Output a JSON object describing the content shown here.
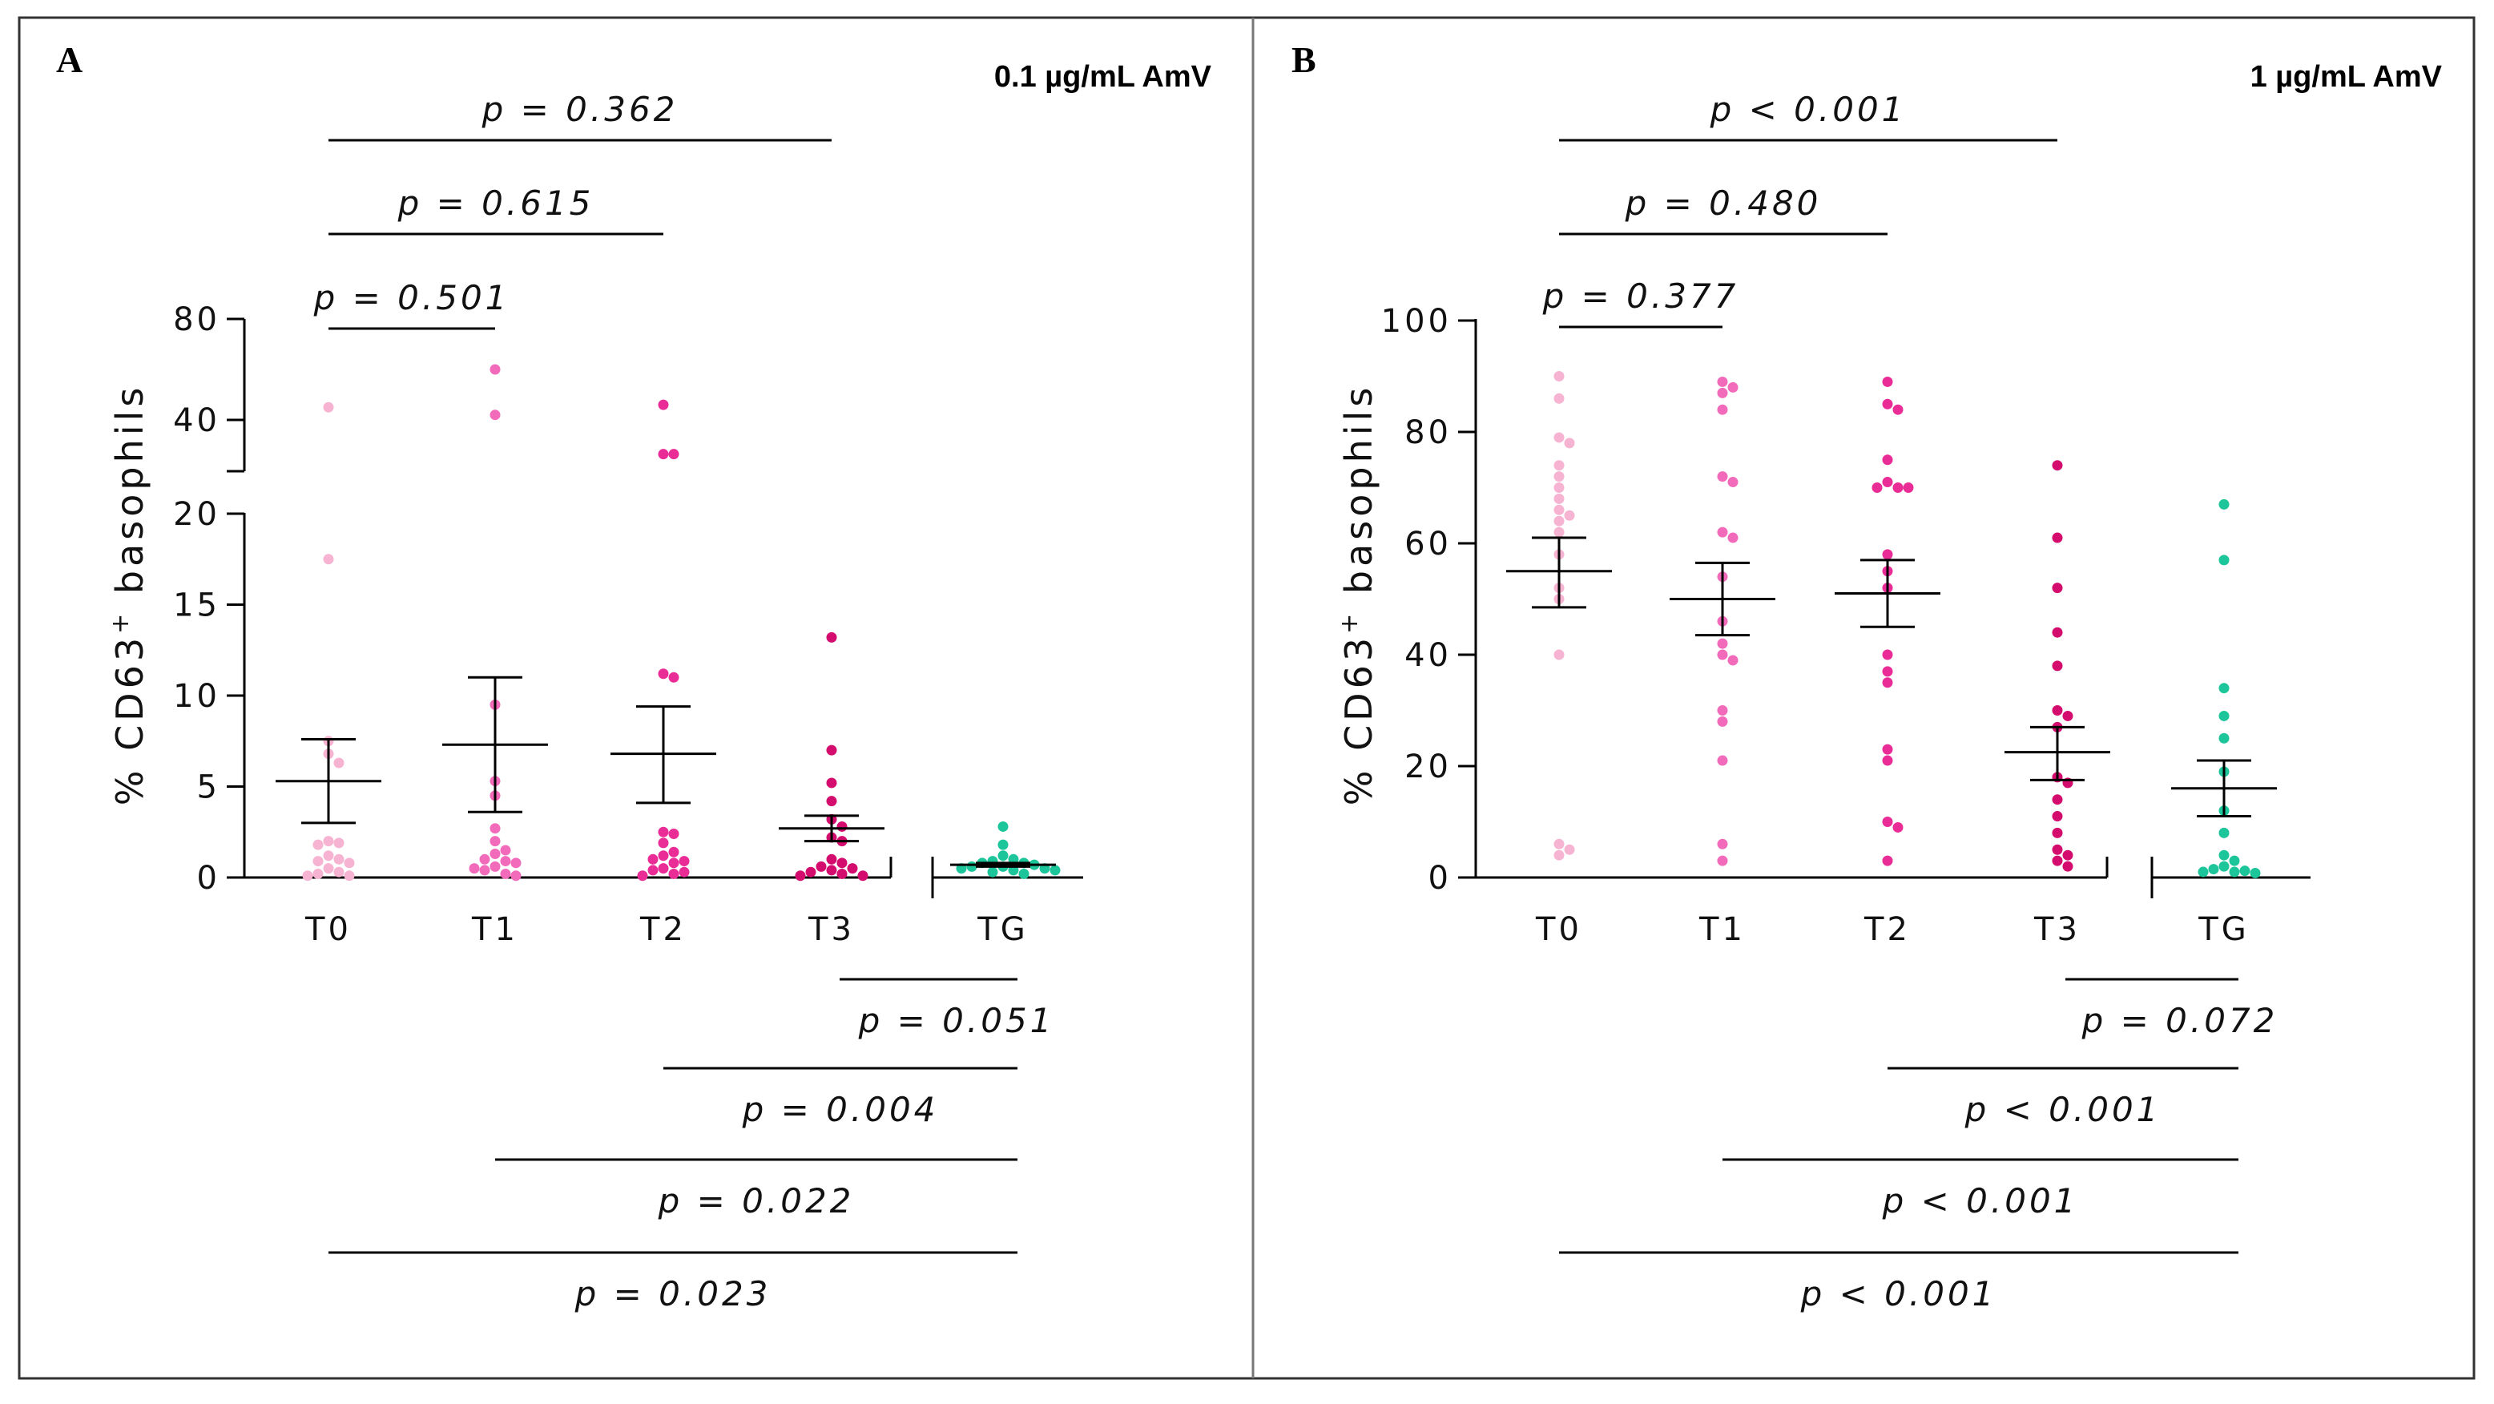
{
  "colors": {
    "T0": "#f7b3d2",
    "T1": "#f26bbb",
    "T2": "#ea2c97",
    "T3": "#d30c6e",
    "TG": "#1cc59a",
    "line": "#000000"
  },
  "chart_data": [
    {
      "type": "scatter",
      "panel_letter": "A",
      "concentration": "0.1 µg/mL AmV",
      "ylabel_prefix": "% CD63",
      "ylabel_sup": "+",
      "ylabel_suffix": " basophils",
      "categories": [
        "T0",
        "T1",
        "T2",
        "T3",
        "TG"
      ],
      "y_axis": {
        "broken": true,
        "lower_range": [
          0,
          20
        ],
        "lower_ticks": [
          "0",
          "5",
          "10",
          "15",
          "20"
        ],
        "upper_range": [
          25,
          80
        ],
        "upper_ticks": [
          "40",
          "80"
        ]
      },
      "points": {
        "T0": [
          45,
          17.5,
          7.5,
          6.8,
          6.3,
          2,
          1.9,
          1.8,
          1.2,
          1.0,
          0.9,
          0.8,
          0.5,
          0.3,
          0.2,
          0.1,
          0.1
        ],
        "T1": [
          60,
          42,
          9.5,
          5.3,
          4.5,
          2.7,
          2.0,
          1.5,
          1.3,
          1.0,
          0.9,
          0.8,
          0.6,
          0.5,
          0.4,
          0.2,
          0.1
        ],
        "T2": [
          46,
          30,
          30,
          11.2,
          11.0,
          2.5,
          2.4,
          1.9,
          1.4,
          1.2,
          1.0,
          0.9,
          0.8,
          0.5,
          0.4,
          0.3,
          0.2,
          0.1
        ],
        "T3": [
          13.2,
          7.0,
          5.2,
          4.2,
          3.2,
          2.8,
          2.2,
          2.0,
          1.0,
          0.8,
          0.6,
          0.5,
          0.4,
          0.3,
          0.2,
          0.1,
          0.1
        ],
        "TG": [
          2.8,
          1.8,
          1.2,
          1.0,
          0.9,
          0.8,
          0.8,
          0.7,
          0.6,
          0.6,
          0.5,
          0.5,
          0.4,
          0.4,
          0.3,
          0.2
        ]
      },
      "mean_sem": {
        "T0": {
          "mean": 5.3,
          "low": 3.0,
          "high": 7.6
        },
        "T1": {
          "mean": 7.3,
          "low": 3.6,
          "high": 11.0
        },
        "T2": {
          "mean": 6.8,
          "low": 4.1,
          "high": 9.4
        },
        "T3": {
          "mean": 2.7,
          "low": 2.0,
          "high": 3.4
        },
        "TG": {
          "mean": 0.7,
          "low": 0.6,
          "high": 0.8
        }
      },
      "comparisons_top": [
        {
          "from": "T0",
          "to": "T3",
          "label": "p = 0.362"
        },
        {
          "from": "T0",
          "to": "T2",
          "label": "p = 0.615"
        },
        {
          "from": "T0",
          "to": "T1",
          "label": "p = 0.501"
        }
      ],
      "comparisons_bottom": [
        {
          "from": "T3",
          "to": "TG",
          "label": "p = 0.051"
        },
        {
          "from": "T2",
          "to": "TG",
          "label": "p = 0.004"
        },
        {
          "from": "T1",
          "to": "TG",
          "label": "p = 0.022"
        },
        {
          "from": "T0",
          "to": "TG",
          "label": "p = 0.023"
        }
      ]
    },
    {
      "type": "scatter",
      "panel_letter": "B",
      "concentration": "1 µg/mL AmV",
      "ylabel_prefix": "% CD63",
      "ylabel_sup": "+",
      "ylabel_suffix": " basophils",
      "categories": [
        "T0",
        "T1",
        "T2",
        "T3",
        "TG"
      ],
      "y_axis": {
        "broken": false,
        "range": [
          0,
          100
        ],
        "ticks": [
          "0",
          "20",
          "40",
          "60",
          "80",
          "100"
        ]
      },
      "points": {
        "T0": [
          90,
          86,
          79,
          78,
          74,
          72,
          70,
          68,
          66,
          65,
          64,
          62,
          58,
          52,
          50,
          40,
          6,
          5,
          4
        ],
        "T1": [
          89,
          88,
          87,
          84,
          72,
          71,
          62,
          61,
          54,
          46,
          42,
          40,
          39,
          30,
          28,
          21,
          6,
          3
        ],
        "T2": [
          89,
          85,
          84,
          75,
          71,
          70,
          70,
          70,
          58,
          55,
          52,
          40,
          37,
          35,
          23,
          21,
          10,
          9,
          3
        ],
        "T3": [
          74,
          61,
          52,
          44,
          38,
          30,
          29,
          27,
          18,
          17,
          14,
          11,
          8,
          5,
          4,
          3,
          2
        ],
        "TG": [
          67,
          57,
          34,
          29,
          25,
          19,
          12,
          8,
          4,
          3,
          2,
          1.5,
          1.2,
          1,
          1,
          0.8
        ]
      },
      "mean_sem": {
        "T0": {
          "mean": 55,
          "low": 48.5,
          "high": 61
        },
        "T1": {
          "mean": 50,
          "low": 43.5,
          "high": 56.5
        },
        "T2": {
          "mean": 51,
          "low": 45,
          "high": 57
        },
        "T3": {
          "mean": 22.5,
          "low": 17.5,
          "high": 27
        },
        "TG": {
          "mean": 16,
          "low": 11,
          "high": 21
        }
      },
      "comparisons_top": [
        {
          "from": "T0",
          "to": "T3",
          "label": "p < 0.001"
        },
        {
          "from": "T0",
          "to": "T2",
          "label": "p = 0.480"
        },
        {
          "from": "T0",
          "to": "T1",
          "label": "p = 0.377"
        }
      ],
      "comparisons_bottom": [
        {
          "from": "T3",
          "to": "TG",
          "label": "p = 0.072"
        },
        {
          "from": "T2",
          "to": "TG",
          "label": "p < 0.001"
        },
        {
          "from": "T1",
          "to": "TG",
          "label": "p < 0.001"
        },
        {
          "from": "T0",
          "to": "TG",
          "label": "p < 0.001"
        }
      ]
    }
  ]
}
